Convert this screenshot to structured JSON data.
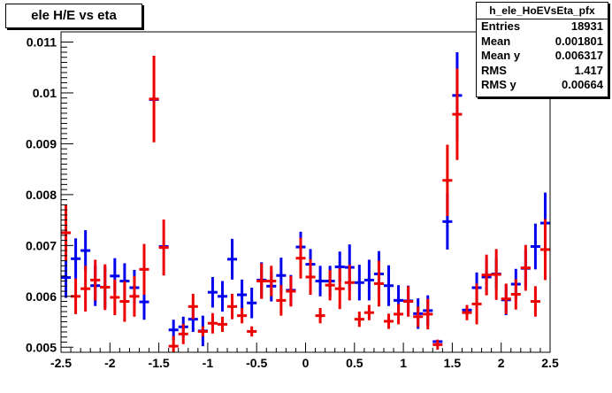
{
  "chart_data": {
    "type": "scatter",
    "title": "ele H/E vs eta",
    "xlabel": "",
    "ylabel": "",
    "xlim": [
      -2.5,
      2.5
    ],
    "ylim": [
      0.0049,
      0.0112
    ],
    "x_ticks": [
      "-2.5",
      "-2",
      "-1.5",
      "-1",
      "-0.5",
      "0",
      "0.5",
      "1",
      "1.5",
      "2",
      "2.5"
    ],
    "y_ticks": [
      "0.005",
      "0.006",
      "0.007",
      "0.008",
      "0.009",
      "0.01",
      "0.011"
    ],
    "grid": false,
    "colors": {
      "blue_series": "#0000ee",
      "red_series": "#ee0000"
    },
    "stats_box": {
      "name": "h_ele_HoEVsEta_pfx",
      "rows": [
        {
          "key": "Entries",
          "value": "18931"
        },
        {
          "key": "Mean",
          "value": "0.001801"
        },
        {
          "key": "Mean y",
          "value": "0.006317"
        },
        {
          "key": "RMS",
          "value": "1.417"
        },
        {
          "key": "RMS y",
          "value": "0.00664"
        }
      ]
    },
    "series": [
      {
        "color": "#0000ee",
        "xerr": 0.05,
        "points": [
          [
            -2.45,
            0.00637,
            0.0004
          ],
          [
            -2.35,
            0.00674,
            0.0004
          ],
          [
            -2.25,
            0.0069,
            0.0004
          ],
          [
            -2.15,
            0.00621,
            0.0004
          ],
          [
            -2.05,
            0.00618,
            0.0004
          ],
          [
            -1.95,
            0.0064,
            0.00035
          ],
          [
            -1.85,
            0.0063,
            0.00035
          ],
          [
            -1.75,
            0.00617,
            0.00035
          ],
          [
            -1.65,
            0.00589,
            0.00035
          ],
          [
            -1.55,
            0.00987,
            5e-05
          ],
          [
            -1.45,
            0.00698,
            5e-05
          ],
          [
            -1.35,
            0.00534,
            0.0002
          ],
          [
            -1.25,
            0.0054,
            0.0002
          ],
          [
            -1.15,
            0.00555,
            0.00025
          ],
          [
            -1.05,
            0.00532,
            0.0003
          ],
          [
            -0.95,
            0.00608,
            0.0003
          ],
          [
            -0.85,
            0.006,
            0.0003
          ],
          [
            -0.75,
            0.00673,
            0.0004
          ],
          [
            -0.65,
            0.00603,
            0.0003
          ],
          [
            -0.55,
            0.00587,
            0.0003
          ],
          [
            -0.45,
            0.00632,
            0.00035
          ],
          [
            -0.35,
            0.0062,
            0.0003
          ],
          [
            -0.25,
            0.00641,
            0.00035
          ],
          [
            -0.15,
            0.00612,
            0.0003
          ],
          [
            -0.05,
            0.00697,
            0.0003
          ],
          [
            0.05,
            0.00663,
            0.0003
          ],
          [
            0.15,
            0.0063,
            0.0003
          ],
          [
            0.25,
            0.0063,
            0.0003
          ],
          [
            0.35,
            0.00658,
            0.0003
          ],
          [
            0.45,
            0.00657,
            0.00045
          ],
          [
            0.55,
            0.00627,
            0.00035
          ],
          [
            0.65,
            0.00632,
            0.0004
          ],
          [
            0.75,
            0.00644,
            0.00045
          ],
          [
            0.85,
            0.00621,
            0.0004
          ],
          [
            0.95,
            0.00592,
            0.0003
          ],
          [
            1.05,
            0.00591,
            0.0003
          ],
          [
            1.15,
            0.00566,
            0.0003
          ],
          [
            1.25,
            0.00572,
            0.0003
          ],
          [
            1.35,
            0.00511,
            3e-05
          ],
          [
            1.45,
            0.00747,
            0.00055
          ],
          [
            1.55,
            0.00995,
            0.00085
          ],
          [
            1.65,
            0.00573,
            5e-05
          ],
          [
            1.75,
            0.00617,
            0.0003
          ],
          [
            1.85,
            0.00638,
            0.00035
          ],
          [
            1.95,
            0.00644,
            0.0003
          ],
          [
            2.05,
            0.00593,
            0.0003
          ],
          [
            2.15,
            0.00624,
            0.0003
          ],
          [
            2.25,
            0.00655,
            0.00035
          ],
          [
            2.35,
            0.00698,
            0.00045
          ],
          [
            2.45,
            0.00744,
            0.0006
          ]
        ]
      },
      {
        "color": "#ee0000",
        "xerr": 0.05,
        "points": [
          [
            -2.45,
            0.00725,
            0.00055
          ],
          [
            -2.35,
            0.006,
            0.00035
          ],
          [
            -2.25,
            0.00615,
            0.00045
          ],
          [
            -2.15,
            0.00632,
            0.0004
          ],
          [
            -2.05,
            0.00618,
            0.00045
          ],
          [
            -1.95,
            0.00598,
            0.00035
          ],
          [
            -1.85,
            0.0059,
            0.0004
          ],
          [
            -1.75,
            0.006,
            0.0004
          ],
          [
            -1.65,
            0.00653,
            0.0005
          ],
          [
            -1.55,
            0.00988,
            0.00085
          ],
          [
            -1.45,
            0.00696,
            0.00055
          ],
          [
            -1.35,
            0.00502,
            0.0002
          ],
          [
            -1.25,
            0.00526,
            0.0002
          ],
          [
            -1.15,
            0.0058,
            0.00025
          ],
          [
            -1.05,
            0.00531,
            0.0001
          ],
          [
            -0.95,
            0.00547,
            0.0002
          ],
          [
            -0.85,
            0.00545,
            0.00015
          ],
          [
            -0.75,
            0.0058,
            0.00025
          ],
          [
            -0.65,
            0.00562,
            0.00015
          ],
          [
            -0.55,
            0.00531,
            0.0001
          ],
          [
            -0.45,
            0.0063,
            0.00035
          ],
          [
            -0.35,
            0.0063,
            0.0003
          ],
          [
            -0.25,
            0.00592,
            0.0003
          ],
          [
            -0.15,
            0.0061,
            0.0003
          ],
          [
            -0.05,
            0.00675,
            0.0004
          ],
          [
            0.05,
            0.00638,
            0.00035
          ],
          [
            0.15,
            0.00562,
            0.00015
          ],
          [
            0.25,
            0.00622,
            0.0003
          ],
          [
            0.35,
            0.00615,
            0.0004
          ],
          [
            0.45,
            0.00627,
            0.00035
          ],
          [
            0.55,
            0.00555,
            0.00015
          ],
          [
            0.65,
            0.00568,
            0.00015
          ],
          [
            0.75,
            0.00625,
            0.00045
          ],
          [
            0.85,
            0.00551,
            0.00015
          ],
          [
            0.95,
            0.00565,
            0.0002
          ],
          [
            1.05,
            0.0059,
            0.0003
          ],
          [
            1.15,
            0.0056,
            0.0002
          ],
          [
            1.25,
            0.00565,
            0.0003
          ],
          [
            1.35,
            0.00505,
            0.0001
          ],
          [
            1.45,
            0.00828,
            0.0007
          ],
          [
            1.55,
            0.00958,
            0.0009
          ],
          [
            1.65,
            0.00568,
            0.00015
          ],
          [
            1.75,
            0.00585,
            0.0004
          ],
          [
            1.85,
            0.00642,
            0.0004
          ],
          [
            1.95,
            0.00643,
            0.0005
          ],
          [
            2.05,
            0.00595,
            0.0003
          ],
          [
            2.15,
            0.00604,
            0.0003
          ],
          [
            2.25,
            0.00656,
            0.00045
          ],
          [
            2.35,
            0.0059,
            0.0003
          ],
          [
            2.45,
            0.00692,
            0.0006
          ]
        ]
      }
    ]
  }
}
